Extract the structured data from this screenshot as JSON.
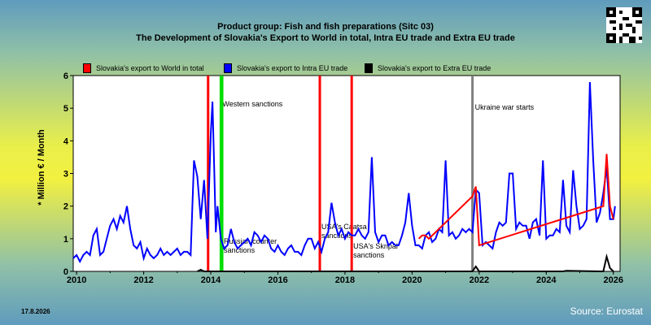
{
  "header": {
    "title_line1": "Product group: Fish and fish preparations (Sitc 03)",
    "title_line2": "The Development of Slovakia's Export to World in total, Intra EU trade and Extra EU trade"
  },
  "legend": [
    {
      "label": "Slovakia's export to World in total",
      "color": "#ff0000"
    },
    {
      "label": "Slovakia's export to Intra EU trade",
      "color": "#0000ff"
    },
    {
      "label": "Slovakia's export to Extra EU trade",
      "color": "#000000"
    }
  ],
  "footer": {
    "date": "17.8.2026",
    "source": "Source: Eurostat"
  },
  "chart_data": {
    "type": "line",
    "ylabel": "* Million € / Month",
    "ylim": [
      0,
      6
    ],
    "xlim": [
      2009.9,
      2026.2
    ],
    "x_ticks": [
      "2010",
      "2012",
      "2014",
      "2016",
      "2018",
      "2020",
      "2022",
      "2024",
      "2026"
    ],
    "y_ticks": [
      "0",
      "1",
      "2",
      "3",
      "4",
      "5",
      "6"
    ],
    "grid": false,
    "legend_position": "top",
    "events": [
      {
        "x": 2013.92,
        "label": "",
        "color": "#ff0000"
      },
      {
        "x": 2014.3,
        "label": "Western sanctions",
        "color": "#00dd00"
      },
      {
        "x": 2014.34,
        "label": "Russian counter sanctions",
        "color": "#00dd00"
      },
      {
        "x": 2017.25,
        "label": "USA's Caatsa sanctions",
        "color": "#ff0000"
      },
      {
        "x": 2018.2,
        "label": "USA's Skripal sanctions",
        "color": "#ff0000"
      },
      {
        "x": 2021.8,
        "label": "Ukraine war starts",
        "color": "#808080"
      }
    ],
    "series": [
      {
        "name": "Slovakia's export to Intra EU trade",
        "color": "#0000ff",
        "x": [
          2009.9,
          2010.0,
          2010.1,
          2010.2,
          2010.3,
          2010.4,
          2010.5,
          2010.6,
          2010.7,
          2010.8,
          2010.9,
          2011.0,
          2011.1,
          2011.2,
          2011.3,
          2011.4,
          2011.5,
          2011.6,
          2011.7,
          2011.8,
          2011.9,
          2012.0,
          2012.1,
          2012.2,
          2012.3,
          2012.4,
          2012.5,
          2012.6,
          2012.7,
          2012.8,
          2012.9,
          2013.0,
          2013.1,
          2013.2,
          2013.3,
          2013.4,
          2013.5,
          2013.6,
          2013.7,
          2013.8,
          2013.9,
          2014.0,
          2014.05,
          2014.1,
          2014.15,
          2014.2,
          2014.3,
          2014.4,
          2014.5,
          2014.6,
          2014.7,
          2014.8,
          2014.9,
          2015.0,
          2015.1,
          2015.2,
          2015.3,
          2015.4,
          2015.5,
          2015.6,
          2015.7,
          2015.8,
          2015.9,
          2016.0,
          2016.1,
          2016.2,
          2016.3,
          2016.4,
          2016.5,
          2016.6,
          2016.7,
          2016.8,
          2016.9,
          2017.0,
          2017.1,
          2017.2,
          2017.3,
          2017.4,
          2017.5,
          2017.6,
          2017.7,
          2017.8,
          2017.9,
          2018.0,
          2018.1,
          2018.2,
          2018.3,
          2018.4,
          2018.5,
          2018.6,
          2018.7,
          2018.8,
          2018.9,
          2019.0,
          2019.1,
          2019.2,
          2019.3,
          2019.4,
          2019.5,
          2019.6,
          2019.7,
          2019.8,
          2019.9,
          2020.0,
          2020.1,
          2020.2,
          2020.3,
          2020.4,
          2020.5,
          2020.6,
          2020.7,
          2020.8,
          2020.9,
          2021.0,
          2021.1,
          2021.2,
          2021.3,
          2021.4,
          2021.5,
          2021.6,
          2021.7,
          2021.8,
          2021.9,
          2022.0,
          2022.1,
          2022.2,
          2022.3,
          2022.4,
          2022.5,
          2022.6,
          2022.7,
          2022.8,
          2022.9,
          2023.0,
          2023.1,
          2023.2,
          2023.3,
          2023.4,
          2023.5,
          2023.6,
          2023.7,
          2023.8,
          2023.9,
          2024.0,
          2024.1,
          2024.2,
          2024.3,
          2024.4,
          2024.5,
          2024.6,
          2024.7,
          2024.8,
          2024.9,
          2025.0,
          2025.1,
          2025.2,
          2025.3,
          2025.4,
          2025.5,
          2025.6,
          2025.7,
          2025.8,
          2025.9,
          2026.0,
          2026.05
        ],
        "values": [
          0.4,
          0.5,
          0.3,
          0.5,
          0.6,
          0.5,
          1.1,
          1.3,
          0.5,
          0.6,
          1.0,
          1.4,
          1.6,
          1.3,
          1.7,
          1.5,
          2.0,
          1.3,
          0.8,
          0.7,
          0.9,
          0.4,
          0.7,
          0.5,
          0.4,
          0.5,
          0.7,
          0.5,
          0.6,
          0.5,
          0.6,
          0.7,
          0.5,
          0.6,
          0.6,
          0.5,
          3.4,
          2.9,
          1.6,
          2.8,
          1.0,
          4.2,
          5.2,
          3.2,
          1.2,
          2.0,
          1.0,
          0.7,
          0.8,
          1.3,
          0.9,
          0.7,
          0.8,
          0.9,
          1.0,
          0.8,
          1.2,
          1.1,
          0.9,
          1.1,
          1.0,
          0.7,
          0.6,
          0.8,
          0.6,
          0.5,
          0.7,
          0.8,
          0.6,
          0.6,
          0.5,
          0.8,
          1.0,
          1.0,
          0.7,
          0.9,
          0.6,
          1.0,
          1.2,
          2.1,
          1.5,
          1.1,
          1.3,
          1.0,
          1.2,
          1.1,
          1.1,
          1.3,
          1.1,
          1.0,
          1.2,
          3.5,
          1.2,
          0.9,
          1.1,
          1.1,
          0.8,
          0.9,
          0.8,
          0.8,
          1.1,
          1.5,
          2.4,
          1.4,
          0.8,
          0.8,
          0.7,
          1.1,
          1.2,
          0.9,
          1.0,
          1.3,
          1.2,
          3.4,
          1.1,
          1.2,
          1.0,
          1.1,
          1.3,
          1.2,
          1.3,
          1.2,
          2.5,
          2.4,
          0.8,
          0.9,
          0.8,
          0.7,
          1.2,
          1.5,
          1.4,
          1.5,
          3.0,
          3.0,
          1.3,
          1.5,
          1.4,
          1.4,
          1.0,
          1.5,
          1.6,
          1.1,
          3.4,
          1.0,
          1.1,
          1.1,
          1.3,
          1.2,
          2.8,
          1.4,
          1.2,
          3.1,
          2.0,
          1.3,
          1.4,
          1.6,
          5.8,
          3.4,
          1.5,
          1.8,
          2.4,
          3.2,
          1.6,
          1.6,
          2.0
        ]
      },
      {
        "name": "Slovakia's export to World in total",
        "color": "#ff0000",
        "x": [
          2020.2,
          2020.3,
          2020.4,
          2020.5,
          2021.8,
          2021.9,
          2022.0,
          2025.7,
          2025.8,
          2025.9,
          2026.0
        ],
        "values": [
          1.0,
          1.1,
          1.1,
          1.0,
          2.3,
          2.6,
          0.8,
          2.0,
          3.6,
          2.0,
          1.6
        ]
      },
      {
        "name": "Slovakia's export to Extra EU trade",
        "color": "#000000",
        "x": [
          2013.6,
          2013.7,
          2013.8,
          2021.8,
          2021.9,
          2022.0,
          2024.5,
          2024.6,
          2025.6,
          2025.7,
          2025.8,
          2025.9,
          2026.0
        ],
        "values": [
          0,
          0.05,
          0,
          0,
          0.15,
          0,
          0,
          0.02,
          0,
          0,
          0.45,
          0.1,
          0
        ]
      }
    ]
  }
}
